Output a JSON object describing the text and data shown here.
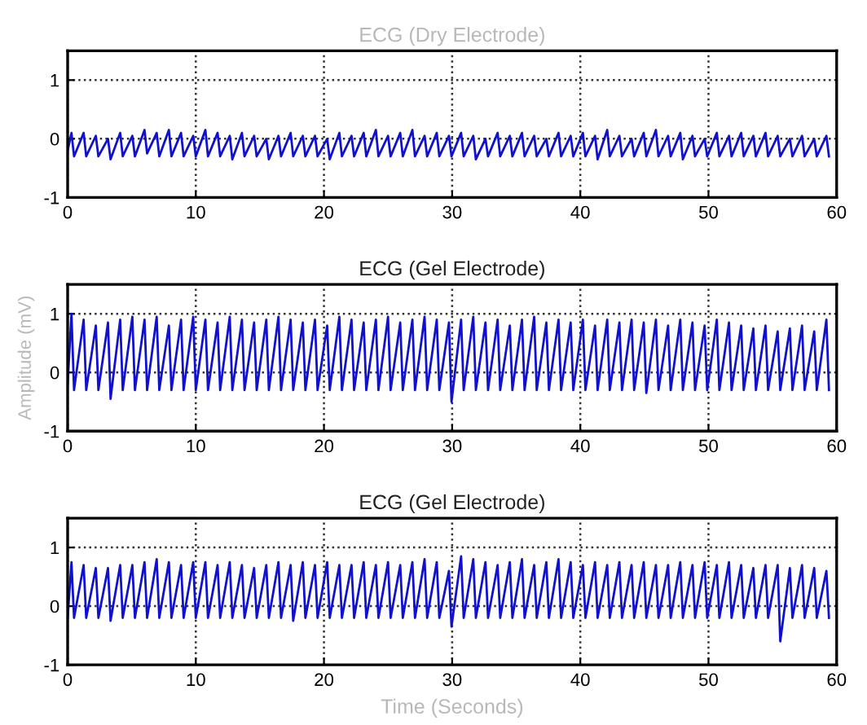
{
  "chart_data": [
    {
      "type": "line",
      "title": "ECG (Dry Electrode)",
      "xlim": [
        0,
        60
      ],
      "ylim": [
        -1,
        1.5
      ],
      "xticks": [
        0,
        10,
        20,
        30,
        40,
        50,
        60
      ],
      "yticks": [
        -1,
        0,
        1
      ],
      "grid": true,
      "x": [
        0,
        0.3,
        0.5,
        1.25,
        1.45,
        2.2,
        2.4,
        3.15,
        3.35,
        4.1,
        4.3,
        5.05,
        5.25,
        6.0,
        6.2,
        6.95,
        7.15,
        7.9,
        8.1,
        8.85,
        9.05,
        9.8,
        10.0,
        10.75,
        10.95,
        11.7,
        11.9,
        12.65,
        12.85,
        13.6,
        13.8,
        14.55,
        14.75,
        15.5,
        15.7,
        16.45,
        16.65,
        17.4,
        17.6,
        18.35,
        18.55,
        19.3,
        19.5,
        20.25,
        20.45,
        21.2,
        21.4,
        22.15,
        22.35,
        23.1,
        23.3,
        24.05,
        24.25,
        25.0,
        25.2,
        25.95,
        26.15,
        26.9,
        27.1,
        27.85,
        28.05,
        28.8,
        29.0,
        29.75,
        29.95,
        30.7,
        30.9,
        31.65,
        31.85,
        32.6,
        32.8,
        33.55,
        33.75,
        34.5,
        34.7,
        35.45,
        35.65,
        36.4,
        36.6,
        37.35,
        37.55,
        38.3,
        38.5,
        39.25,
        39.45,
        40.2,
        40.4,
        41.15,
        41.35,
        42.1,
        42.3,
        43.05,
        43.25,
        44.0,
        44.2,
        44.95,
        45.15,
        45.9,
        46.1,
        46.85,
        47.05,
        47.8,
        48.0,
        48.75,
        48.95,
        49.7,
        49.9,
        50.65,
        50.85,
        51.6,
        51.8,
        52.55,
        52.75,
        53.5,
        53.7,
        54.45,
        54.65,
        55.4,
        55.6,
        56.35,
        56.55,
        57.3,
        57.5,
        58.25,
        58.45,
        59.2,
        59.4
      ],
      "series": [
        {
          "color": "#1010d0",
          "values": [
            -0.2,
            0.1,
            -0.3,
            0.1,
            -0.3,
            0.05,
            -0.3,
            0.0,
            -0.35,
            0.1,
            -0.3,
            0.05,
            -0.3,
            0.15,
            -0.25,
            0.1,
            -0.3,
            0.15,
            -0.3,
            0.1,
            -0.3,
            0.05,
            -0.3,
            0.15,
            -0.3,
            0.1,
            -0.3,
            0.05,
            -0.35,
            0.1,
            -0.3,
            0.05,
            -0.3,
            0.0,
            -0.35,
            0.05,
            -0.3,
            0.1,
            -0.3,
            0.05,
            -0.3,
            0.05,
            -0.3,
            0.0,
            -0.35,
            0.1,
            -0.3,
            0.05,
            -0.3,
            0.1,
            -0.3,
            0.15,
            -0.3,
            0.05,
            -0.3,
            0.1,
            -0.3,
            0.15,
            -0.3,
            0.05,
            -0.3,
            0.1,
            -0.3,
            0.05,
            -0.3,
            0.1,
            -0.3,
            0.05,
            -0.35,
            0.0,
            -0.3,
            0.1,
            -0.3,
            0.05,
            -0.3,
            0.1,
            -0.3,
            0.05,
            -0.3,
            0.0,
            -0.3,
            0.1,
            -0.3,
            0.05,
            -0.3,
            0.1,
            -0.3,
            0.05,
            -0.35,
            0.15,
            -0.3,
            0.05,
            -0.3,
            0.0,
            -0.3,
            0.1,
            -0.3,
            0.15,
            -0.3,
            0.05,
            -0.3,
            0.1,
            -0.35,
            0.05,
            -0.3,
            0.0,
            -0.3,
            0.1,
            -0.3,
            0.05,
            -0.3,
            0.1,
            -0.3,
            0.05,
            -0.3,
            0.1,
            -0.3,
            0.05,
            -0.3,
            0.0,
            -0.3,
            0.05,
            -0.3,
            0.0,
            -0.3,
            0.05,
            -0.3
          ]
        }
      ]
    },
    {
      "type": "line",
      "title": "ECG (Gel Electrode)",
      "ylabel": "Amplitude (mV)",
      "xlim": [
        0,
        60
      ],
      "ylim": [
        -1,
        1.5
      ],
      "xticks": [
        0,
        10,
        20,
        30,
        40,
        50,
        60
      ],
      "yticks": [
        -1,
        0,
        1
      ],
      "grid": true,
      "x": [
        0,
        0.3,
        0.5,
        1.25,
        1.45,
        2.2,
        2.4,
        3.15,
        3.35,
        4.1,
        4.3,
        5.05,
        5.25,
        6.0,
        6.2,
        6.95,
        7.15,
        7.9,
        8.1,
        8.85,
        9.05,
        9.8,
        10.0,
        10.75,
        10.95,
        11.7,
        11.9,
        12.65,
        12.85,
        13.6,
        13.8,
        14.55,
        14.75,
        15.5,
        15.7,
        16.45,
        16.65,
        17.4,
        17.6,
        18.35,
        18.55,
        19.3,
        19.5,
        20.25,
        20.45,
        21.2,
        21.4,
        22.15,
        22.35,
        23.1,
        23.3,
        24.05,
        24.25,
        25.0,
        25.2,
        25.95,
        26.15,
        26.9,
        27.1,
        27.85,
        28.05,
        28.8,
        29.0,
        29.75,
        29.95,
        30.7,
        30.9,
        31.65,
        31.85,
        32.6,
        32.8,
        33.55,
        33.75,
        34.5,
        34.7,
        35.45,
        35.65,
        36.4,
        36.6,
        37.35,
        37.55,
        38.3,
        38.5,
        39.25,
        39.45,
        40.2,
        40.4,
        41.15,
        41.35,
        42.1,
        42.3,
        43.05,
        43.25,
        44.0,
        44.2,
        44.95,
        45.15,
        45.9,
        46.1,
        46.85,
        47.05,
        47.8,
        48.0,
        48.75,
        48.95,
        49.7,
        49.9,
        50.65,
        50.85,
        51.6,
        51.8,
        52.55,
        52.75,
        53.5,
        53.7,
        54.45,
        54.65,
        55.4,
        55.6,
        56.35,
        56.55,
        57.3,
        57.5,
        58.25,
        58.45,
        59.2,
        59.4
      ],
      "series": [
        {
          "color": "#1010d0",
          "values": [
            -0.2,
            1.0,
            -0.3,
            0.9,
            -0.3,
            0.8,
            -0.3,
            0.85,
            -0.45,
            0.9,
            -0.3,
            0.95,
            -0.3,
            0.9,
            -0.3,
            0.95,
            -0.3,
            0.8,
            -0.3,
            0.9,
            -0.3,
            0.95,
            -0.3,
            0.9,
            -0.3,
            0.85,
            -0.3,
            0.95,
            -0.3,
            0.9,
            -0.3,
            0.85,
            -0.3,
            0.9,
            -0.3,
            0.95,
            -0.3,
            0.9,
            -0.3,
            0.85,
            -0.3,
            0.9,
            -0.3,
            0.8,
            -0.3,
            0.95,
            -0.3,
            0.9,
            -0.3,
            0.85,
            -0.3,
            0.9,
            -0.3,
            0.95,
            -0.3,
            0.85,
            -0.3,
            0.9,
            -0.3,
            0.95,
            -0.3,
            0.9,
            -0.3,
            0.85,
            -0.5,
            0.9,
            -0.3,
            0.95,
            -0.3,
            0.85,
            -0.3,
            0.9,
            -0.3,
            0.8,
            -0.3,
            0.9,
            -0.3,
            0.95,
            -0.3,
            0.85,
            -0.3,
            0.9,
            -0.3,
            0.85,
            -0.3,
            0.9,
            -0.3,
            0.8,
            -0.3,
            0.9,
            -0.3,
            0.85,
            -0.3,
            0.9,
            -0.3,
            0.85,
            -0.35,
            0.9,
            -0.3,
            0.8,
            -0.3,
            0.9,
            -0.3,
            0.85,
            -0.3,
            0.8,
            -0.3,
            0.9,
            -0.3,
            0.85,
            -0.3,
            0.8,
            -0.3,
            0.75,
            -0.3,
            0.8,
            -0.3,
            0.7,
            -0.3,
            0.75,
            -0.3,
            0.8,
            -0.3,
            0.7,
            -0.3,
            0.9,
            -0.3
          ]
        }
      ]
    },
    {
      "type": "line",
      "title": "ECG (Gel Electrode)",
      "xlabel": "Time (Seconds)",
      "xlim": [
        0,
        60
      ],
      "ylim": [
        -1,
        1.5
      ],
      "xticks": [
        0,
        10,
        20,
        30,
        40,
        50,
        60
      ],
      "yticks": [
        -1,
        0,
        1
      ],
      "grid": true,
      "x": [
        0,
        0.3,
        0.5,
        1.25,
        1.45,
        2.2,
        2.4,
        3.15,
        3.35,
        4.1,
        4.3,
        5.05,
        5.25,
        6.0,
        6.2,
        6.95,
        7.15,
        7.9,
        8.1,
        8.85,
        9.05,
        9.8,
        10.0,
        10.75,
        10.95,
        11.7,
        11.9,
        12.65,
        12.85,
        13.6,
        13.8,
        14.55,
        14.75,
        15.5,
        15.7,
        16.45,
        16.65,
        17.4,
        17.6,
        18.35,
        18.55,
        19.3,
        19.5,
        20.25,
        20.45,
        21.2,
        21.4,
        22.15,
        22.35,
        23.1,
        23.3,
        24.05,
        24.25,
        25.0,
        25.2,
        25.95,
        26.15,
        26.9,
        27.1,
        27.85,
        28.05,
        28.8,
        29.0,
        29.75,
        29.95,
        30.7,
        30.9,
        31.65,
        31.85,
        32.6,
        32.8,
        33.55,
        33.75,
        34.5,
        34.7,
        35.45,
        35.65,
        36.4,
        36.6,
        37.35,
        37.55,
        38.3,
        38.5,
        39.25,
        39.45,
        40.2,
        40.4,
        41.15,
        41.35,
        42.1,
        42.3,
        43.05,
        43.25,
        44.0,
        44.2,
        44.95,
        45.15,
        45.9,
        46.1,
        46.85,
        47.05,
        47.8,
        48.0,
        48.75,
        48.95,
        49.7,
        49.9,
        50.65,
        50.85,
        51.6,
        51.8,
        52.55,
        52.75,
        53.5,
        53.7,
        54.45,
        54.65,
        55.4,
        55.6,
        56.35,
        56.55,
        57.3,
        57.5,
        58.25,
        58.45,
        59.2,
        59.4
      ],
      "series": [
        {
          "color": "#1010d0",
          "values": [
            -0.2,
            0.75,
            -0.2,
            0.7,
            -0.2,
            0.65,
            -0.2,
            0.65,
            -0.25,
            0.7,
            -0.2,
            0.7,
            -0.2,
            0.75,
            -0.2,
            0.8,
            -0.2,
            0.75,
            -0.2,
            0.7,
            -0.2,
            0.75,
            -0.2,
            0.75,
            -0.2,
            0.7,
            -0.2,
            0.75,
            -0.2,
            0.7,
            -0.2,
            0.65,
            -0.2,
            0.7,
            -0.2,
            0.75,
            -0.2,
            0.7,
            -0.25,
            0.75,
            -0.2,
            0.7,
            -0.2,
            0.75,
            -0.2,
            0.7,
            -0.2,
            0.7,
            -0.2,
            0.75,
            -0.2,
            0.7,
            -0.2,
            0.75,
            -0.2,
            0.7,
            -0.2,
            0.75,
            -0.2,
            0.8,
            -0.2,
            0.75,
            -0.2,
            0.6,
            -0.35,
            0.85,
            -0.2,
            0.8,
            -0.2,
            0.75,
            -0.2,
            0.7,
            -0.2,
            0.75,
            -0.2,
            0.8,
            -0.2,
            0.7,
            -0.2,
            0.75,
            -0.2,
            0.8,
            -0.2,
            0.75,
            -0.2,
            0.7,
            -0.2,
            0.75,
            -0.2,
            0.7,
            -0.2,
            0.75,
            -0.2,
            0.7,
            -0.2,
            0.75,
            -0.2,
            0.7,
            -0.2,
            0.7,
            -0.2,
            0.75,
            -0.2,
            0.7,
            -0.2,
            0.75,
            -0.2,
            0.7,
            -0.2,
            0.75,
            -0.2,
            0.7,
            -0.2,
            0.65,
            -0.2,
            0.7,
            -0.2,
            0.7,
            -0.6,
            0.65,
            -0.2,
            0.7,
            -0.2,
            0.65,
            -0.2,
            0.6,
            -0.2
          ]
        }
      ]
    }
  ]
}
